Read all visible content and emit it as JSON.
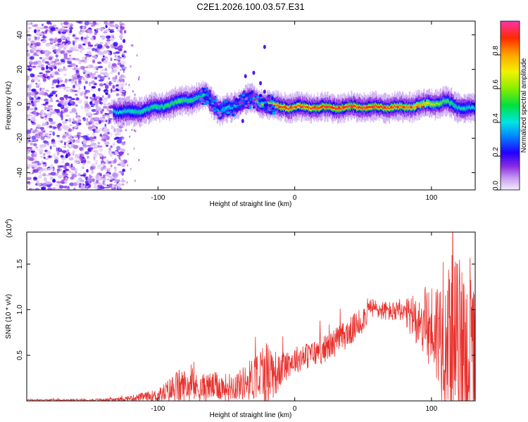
{
  "title": "C2E1.2026.100.03.57.E31",
  "chart_data": [
    {
      "type": "heatmap",
      "name": "spectrogram",
      "xlabel": "Height of straight line (km)",
      "ylabel": "Frequency (Hz)",
      "xlim": [
        -196,
        132
      ],
      "ylim": [
        -50,
        48
      ],
      "xticks": [
        -100,
        0,
        100
      ],
      "yticks": [
        -40,
        -20,
        0,
        20,
        40
      ],
      "colorbar": {
        "label": "Normalized spectral amplitude",
        "range": [
          0.0,
          1.0
        ],
        "ticks": [
          0.0,
          0.2,
          0.4,
          0.6,
          0.8
        ]
      },
      "ridge": {
        "x": [
          -133,
          -120,
          -100,
          -85,
          -75,
          -65,
          -55,
          -45,
          -38,
          -32,
          -25,
          -20,
          -10,
          0,
          20,
          40,
          60,
          80,
          90,
          100,
          110,
          120,
          132
        ],
        "freq": [
          -4,
          -5,
          -2,
          1,
          3,
          5,
          -4,
          -2,
          2,
          3,
          0,
          0,
          -2,
          -2,
          -2,
          -2,
          -2,
          -2,
          -1,
          0,
          1,
          -2,
          -3
        ],
        "amplitude": [
          0.4,
          0.45,
          0.5,
          0.55,
          0.5,
          0.45,
          0.45,
          0.4,
          0.45,
          0.5,
          0.55,
          0.75,
          0.9,
          0.85,
          0.9,
          0.92,
          0.9,
          0.85,
          0.8,
          0.7,
          0.55,
          0.45,
          0.4
        ]
      },
      "noise_region_x": [
        -196,
        -130
      ]
    },
    {
      "type": "line",
      "name": "snr",
      "xlabel": "Height of straight line (km)",
      "ylabel": "SNR (10 * v/v)",
      "yscale_label": "(x10",
      "yscale_exp": "4",
      "xlim": [
        -196,
        132
      ],
      "ylim": [
        0,
        18500
      ],
      "xticks": [
        -100,
        0,
        100
      ],
      "yticks": [
        5000,
        10000,
        15000
      ],
      "ytick_labels": [
        "0.5",
        "1.0",
        "1.5"
      ],
      "color": "#e8322e",
      "envelope": {
        "x": [
          -196,
          -150,
          -130,
          -120,
          -100,
          -88,
          -86,
          -80,
          -70,
          -60,
          -50,
          -40,
          -30,
          -22,
          -18,
          -12,
          -8,
          -4,
          0,
          10,
          20,
          30,
          40,
          45,
          50,
          53,
          56,
          60,
          70,
          75,
          80,
          90,
          95,
          100,
          105,
          110,
          115,
          120,
          125,
          130,
          132
        ],
        "base": [
          100,
          100,
          150,
          300,
          600,
          1300,
          1500,
          1700,
          1400,
          1600,
          1500,
          1800,
          2500,
          3000,
          3300,
          3000,
          3800,
          4200,
          4500,
          5000,
          5500,
          6500,
          7500,
          8200,
          9000,
          9800,
          10200,
          10000,
          9800,
          9700,
          9500,
          9000,
          8500,
          8000,
          7500,
          7000,
          6500,
          6000,
          5500,
          5000,
          4800
        ],
        "spread": [
          80,
          100,
          200,
          300,
          700,
          1800,
          2000,
          1800,
          1500,
          1600,
          1500,
          1700,
          2500,
          4000,
          3500,
          2000,
          1800,
          1600,
          1500,
          1500,
          1500,
          1600,
          1600,
          1600,
          1500,
          1400,
          1200,
          1100,
          1100,
          1200,
          1500,
          3000,
          4000,
          5000,
          6500,
          8000,
          9500,
          10000,
          9000,
          8000,
          7000
        ]
      }
    }
  ]
}
